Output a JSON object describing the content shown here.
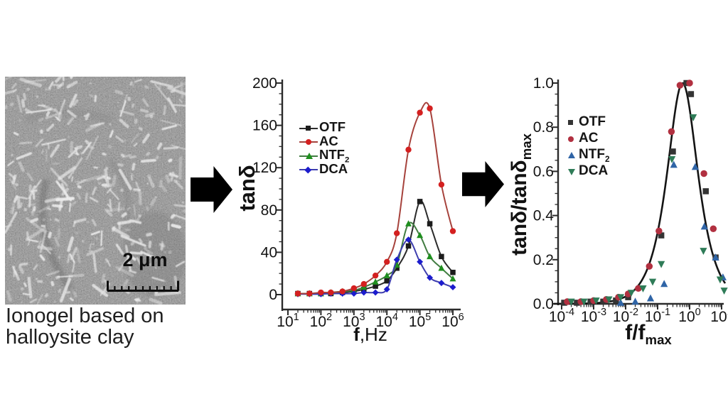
{
  "page": {
    "background": "#ffffff"
  },
  "left_panel": {
    "caption_line1": "Ionogel based on",
    "caption_line2": "halloysite clay",
    "scale_bar": {
      "label": "2 μm"
    }
  },
  "chart_data": [
    {
      "type": "line",
      "xlabel_bold": "f",
      "xlabel_rest": ",Hz",
      "ylabel": "tanδ",
      "x_scale": "log",
      "xlim": [
        10,
        1000000
      ],
      "ylim": [
        0,
        200
      ],
      "x_tick_exponents": [
        1,
        2,
        3,
        4,
        5,
        6
      ],
      "y_ticks": [
        0,
        40,
        80,
        120,
        160,
        200
      ],
      "legend_position": "upper-left-inside",
      "grid": false,
      "x": [
        20,
        45,
        100,
        200,
        450,
        1000,
        2000,
        4500,
        10000,
        20000,
        45000,
        100000,
        200000,
        450000,
        1000000
      ],
      "series": [
        {
          "name": "OTF",
          "sub": "",
          "marker": "square",
          "color": "#1c1c1c",
          "line_color": "#2b2b2b",
          "values": [
            1,
            1,
            1,
            1,
            2,
            3,
            5,
            8,
            13,
            25,
            46,
            88,
            67,
            36,
            21
          ]
        },
        {
          "name": "AC",
          "sub": "",
          "marker": "circle",
          "color": "#d42020",
          "line_color": "#a6423c",
          "values": [
            1,
            1,
            2,
            2,
            3,
            6,
            10,
            18,
            31,
            58,
            137,
            172,
            176,
            104,
            60
          ]
        },
        {
          "name": "NTF",
          "sub": "2",
          "marker": "triangle-up",
          "color": "#1f8f1f",
          "line_color": "#417c41",
          "values": [
            1,
            1,
            1,
            2,
            3,
            4,
            7,
            12,
            18,
            28,
            67,
            56,
            36,
            25,
            15
          ]
        },
        {
          "name": "DCA",
          "sub": "",
          "marker": "diamond",
          "color": "#1c1ccd",
          "line_color": "#3d3dae",
          "values": [
            0.5,
            0.5,
            0.5,
            1,
            1,
            1,
            2,
            2,
            5,
            33,
            52,
            31,
            16,
            11,
            7
          ]
        }
      ]
    },
    {
      "type": "scatter",
      "xlabel_base": "f/f",
      "xlabel_sub": "max",
      "ylabel_base": "tanδ/tanδ",
      "ylabel_sub": "max",
      "x_scale": "log",
      "xlim": [
        0.0001,
        10
      ],
      "ylim": [
        0,
        1
      ],
      "x_tick_exponents": [
        -4,
        -3,
        -2,
        -1,
        0,
        1
      ],
      "y_ticks": [
        "0.0",
        "0.2",
        "0.4",
        "0.6",
        "0.8",
        "1.0"
      ],
      "legend_position": "upper-left-inside",
      "grid": false,
      "master_curve": {
        "shape": "debye",
        "peak_x": 0.6,
        "peak_y": 1.0,
        "color": "#141414"
      },
      "series": [
        {
          "name": "OTF",
          "sub": "",
          "marker": "square",
          "color": "#343434",
          "points": [
            [
              0.00012,
              0.005
            ],
            [
              0.0003,
              0.005
            ],
            [
              0.0008,
              0.01
            ],
            [
              0.002,
              0.01
            ],
            [
              0.005,
              0.015
            ],
            [
              0.012,
              0.03
            ],
            [
              0.13,
              0.31
            ],
            [
              0.3,
              0.69
            ],
            [
              0.8,
              1.0
            ],
            [
              1.1,
              0.95
            ],
            [
              3.2,
              0.51
            ],
            [
              6.5,
              0.21
            ]
          ]
        },
        {
          "name": "AC",
          "sub": "",
          "marker": "circle",
          "color": "#b13040",
          "points": [
            [
              0.00015,
              0.01
            ],
            [
              0.0004,
              0.01
            ],
            [
              0.001,
              0.015
            ],
            [
              0.0025,
              0.02
            ],
            [
              0.006,
              0.03
            ],
            [
              0.012,
              0.045
            ],
            [
              0.025,
              0.07
            ],
            [
              0.055,
              0.17
            ],
            [
              0.11,
              0.33
            ],
            [
              0.27,
              0.78
            ],
            [
              0.5,
              0.99
            ],
            [
              1.0,
              1.0
            ],
            [
              2.8,
              0.59
            ],
            [
              5.5,
              0.34
            ]
          ]
        },
        {
          "name": "NTF",
          "sub": "2",
          "marker": "triangle-up",
          "color": "#2f64a6",
          "points": [
            [
              0.007,
              0.005
            ],
            [
              0.02,
              0.01
            ],
            [
              0.06,
              0.025
            ],
            [
              0.16,
              0.09
            ],
            [
              0.32,
              0.63
            ],
            [
              1.5,
              0.62
            ],
            [
              2.9,
              0.35
            ],
            [
              6.5,
              0.21
            ],
            [
              11,
              0.12
            ]
          ]
        },
        {
          "name": "DCA",
          "sub": "",
          "marker": "triangle-down",
          "color": "#2f7c58",
          "points": [
            [
              0.0002,
              0.01
            ],
            [
              0.0005,
              0.01
            ],
            [
              0.0012,
              0.015
            ],
            [
              0.003,
              0.02
            ],
            [
              0.007,
              0.03
            ],
            [
              0.015,
              0.05
            ],
            [
              0.035,
              0.07
            ],
            [
              0.07,
              0.1
            ],
            [
              0.13,
              0.18
            ],
            [
              0.28,
              0.655
            ],
            [
              1.3,
              0.845
            ],
            [
              2.7,
              0.24
            ],
            [
              9,
              0.11
            ],
            [
              12,
              0.06
            ]
          ]
        }
      ]
    }
  ]
}
